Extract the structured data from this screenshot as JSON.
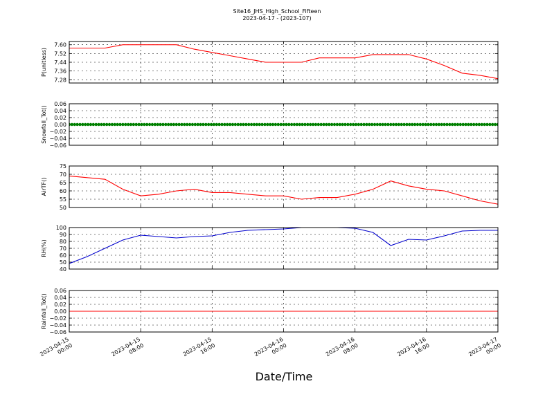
{
  "figure": {
    "title": "Site16_JHS_High_School_Fifteen",
    "subtitle": "2023-04-17 - (2023-107)",
    "xlabel": "Date/Time"
  },
  "chart_data": [
    {
      "type": "line",
      "ylabel": "P(unitless)",
      "ylim": [
        7.25,
        7.63
      ],
      "yticks": [
        "7.60",
        "7.52",
        "7.44",
        "7.36",
        "7.28"
      ],
      "grid": true,
      "color": "#ff0000",
      "x": [
        "2023-04-15 00:00",
        "2023-04-15 02:00",
        "2023-04-15 04:00",
        "2023-04-15 06:00",
        "2023-04-15 08:00",
        "2023-04-15 10:00",
        "2023-04-15 12:00",
        "2023-04-15 14:00",
        "2023-04-15 16:00",
        "2023-04-15 18:00",
        "2023-04-15 20:00",
        "2023-04-15 22:00",
        "2023-04-16 00:00",
        "2023-04-16 02:00",
        "2023-04-16 04:00",
        "2023-04-16 06:00",
        "2023-04-16 08:00",
        "2023-04-16 10:00",
        "2023-04-16 12:00",
        "2023-04-16 14:00",
        "2023-04-16 16:00",
        "2023-04-16 18:00",
        "2023-04-16 20:00",
        "2023-04-16 22:00",
        "2023-04-17 00:00"
      ],
      "values": [
        7.57,
        7.57,
        7.57,
        7.6,
        7.6,
        7.6,
        7.6,
        7.56,
        7.53,
        7.5,
        7.47,
        7.44,
        7.44,
        7.44,
        7.48,
        7.48,
        7.48,
        7.51,
        7.51,
        7.51,
        7.47,
        7.41,
        7.34,
        7.32,
        7.29
      ]
    },
    {
      "type": "scatter",
      "ylabel": "Snowfall_Tot()",
      "ylim": [
        -0.06,
        0.06
      ],
      "yticks": [
        "0.06",
        "0.04",
        "0.02",
        "0.00",
        "−0.02",
        "−0.04",
        "−0.06"
      ],
      "grid": true,
      "color": "#008000",
      "x": [
        "2023-04-15 00:00",
        "2023-04-15 02:00",
        "2023-04-15 04:00",
        "2023-04-15 06:00",
        "2023-04-15 08:00",
        "2023-04-15 10:00",
        "2023-04-15 12:00",
        "2023-04-15 14:00",
        "2023-04-15 16:00",
        "2023-04-15 18:00",
        "2023-04-15 20:00",
        "2023-04-15 22:00",
        "2023-04-16 00:00",
        "2023-04-16 02:00",
        "2023-04-16 04:00",
        "2023-04-16 06:00",
        "2023-04-16 08:00",
        "2023-04-16 10:00",
        "2023-04-16 12:00",
        "2023-04-16 14:00",
        "2023-04-16 16:00",
        "2023-04-16 18:00",
        "2023-04-16 20:00",
        "2023-04-16 22:00",
        "2023-04-17 00:00"
      ],
      "values": [
        0,
        0,
        0,
        0,
        0,
        0,
        0,
        0,
        0,
        0,
        0,
        0,
        0,
        0,
        0,
        0,
        0,
        0,
        0,
        0,
        0,
        0,
        0,
        0,
        0
      ]
    },
    {
      "type": "line",
      "ylabel": "AirTF()",
      "ylim": [
        50,
        75
      ],
      "yticks": [
        "75",
        "70",
        "65",
        "60",
        "55",
        "50"
      ],
      "grid": true,
      "color": "#ff0000",
      "x": [
        "2023-04-15 00:00",
        "2023-04-15 02:00",
        "2023-04-15 04:00",
        "2023-04-15 06:00",
        "2023-04-15 08:00",
        "2023-04-15 10:00",
        "2023-04-15 12:00",
        "2023-04-15 14:00",
        "2023-04-15 16:00",
        "2023-04-15 18:00",
        "2023-04-15 20:00",
        "2023-04-15 22:00",
        "2023-04-16 00:00",
        "2023-04-16 02:00",
        "2023-04-16 04:00",
        "2023-04-16 06:00",
        "2023-04-16 08:00",
        "2023-04-16 10:00",
        "2023-04-16 12:00",
        "2023-04-16 14:00",
        "2023-04-16 16:00",
        "2023-04-16 18:00",
        "2023-04-16 20:00",
        "2023-04-16 22:00",
        "2023-04-17 00:00"
      ],
      "values": [
        69,
        68,
        67,
        61,
        57,
        58,
        60,
        61,
        59,
        59,
        58,
        57,
        57,
        55,
        56,
        56,
        58,
        61,
        66,
        63,
        61,
        60,
        57,
        54,
        52
      ]
    },
    {
      "type": "line",
      "ylabel": "RH(%)",
      "ylim": [
        40,
        100
      ],
      "yticks": [
        "100",
        "90",
        "80",
        "70",
        "60",
        "50",
        "40"
      ],
      "grid": true,
      "color": "#0000cc",
      "x": [
        "2023-04-15 00:00",
        "2023-04-15 02:00",
        "2023-04-15 04:00",
        "2023-04-15 06:00",
        "2023-04-15 08:00",
        "2023-04-15 10:00",
        "2023-04-15 12:00",
        "2023-04-15 14:00",
        "2023-04-15 16:00",
        "2023-04-15 18:00",
        "2023-04-15 20:00",
        "2023-04-15 22:00",
        "2023-04-16 00:00",
        "2023-04-16 02:00",
        "2023-04-16 04:00",
        "2023-04-16 06:00",
        "2023-04-16 08:00",
        "2023-04-16 10:00",
        "2023-04-16 12:00",
        "2023-04-16 14:00",
        "2023-04-16 16:00",
        "2023-04-16 18:00",
        "2023-04-16 20:00",
        "2023-04-16 22:00",
        "2023-04-17 00:00"
      ],
      "values": [
        48,
        58,
        70,
        82,
        89,
        87,
        85,
        87,
        88,
        93,
        96,
        97,
        98,
        100,
        100,
        100,
        99,
        93,
        74,
        83,
        82,
        88,
        95,
        96,
        96
      ]
    },
    {
      "type": "line",
      "ylabel": "Rainfall_Tot()",
      "ylim": [
        -0.06,
        0.06
      ],
      "yticks": [
        "0.06",
        "0.04",
        "0.02",
        "0.00",
        "−0.02",
        "−0.04",
        "−0.06"
      ],
      "grid": true,
      "color": "#ff0000",
      "x": [
        "2023-04-15 00:00",
        "2023-04-17 00:00"
      ],
      "values": [
        0,
        0
      ]
    }
  ],
  "x_axis": {
    "range": [
      "2023-04-15 00:00",
      "2023-04-17 00:00"
    ],
    "ticks": [
      [
        "2023-04-15",
        "00:00"
      ],
      [
        "2023-04-15",
        "08:00"
      ],
      [
        "2023-04-15",
        "16:00"
      ],
      [
        "2023-04-16",
        "00:00"
      ],
      [
        "2023-04-16",
        "08:00"
      ],
      [
        "2023-04-16",
        "16:00"
      ],
      [
        "2023-04-17",
        "00:00"
      ]
    ]
  }
}
